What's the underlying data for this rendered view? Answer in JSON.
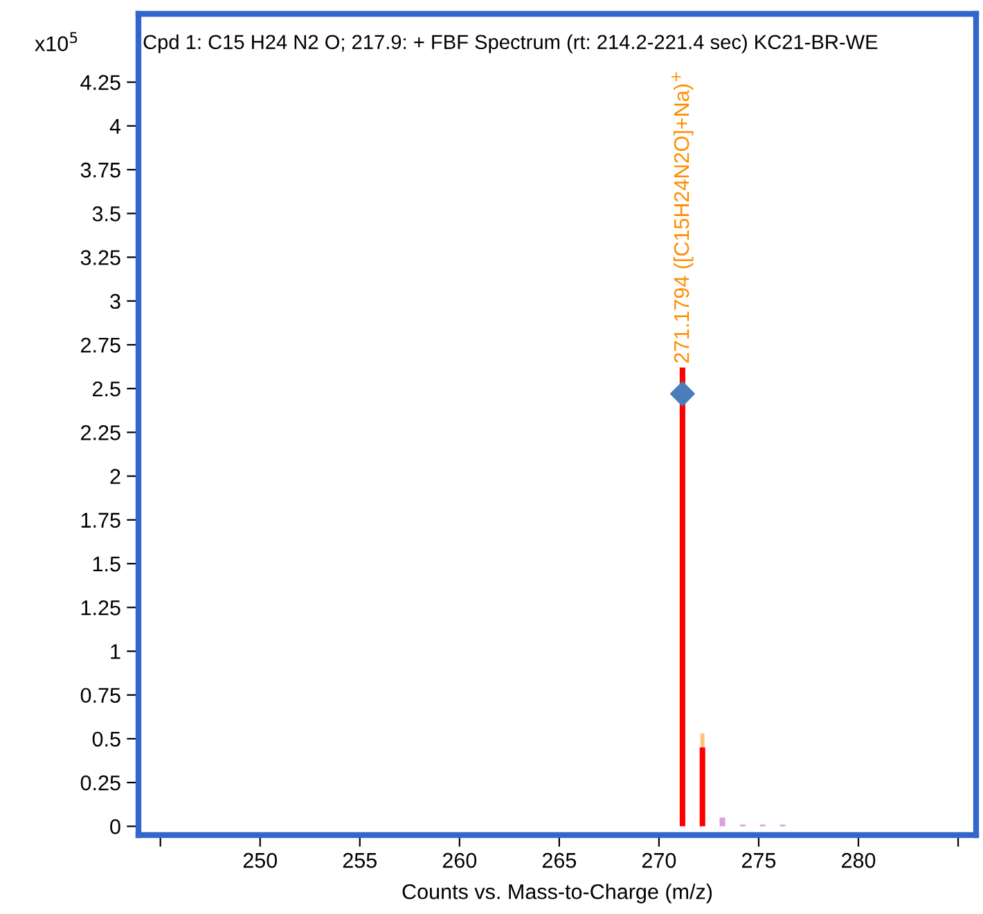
{
  "chart_data": {
    "type": "bar",
    "title": "Cpd 1: C15 H24 N2 O; 217.9: + FBF Spectrum (rt: 214.2-221.4 sec) KC21-BR-WE",
    "xlabel": "Counts vs. Mass-to-Charge (m/z)",
    "ylabel": "x10$^{5}$",
    "series": [
      {
        "color": "#ffc080",
        "x": [
          272.18
        ],
        "values": [
          0.53
        ]
      },
      {
        "color": "#ff0000",
        "x": [
          271.1794,
          272.18
        ],
        "values": [
          2.62,
          0.45
        ]
      },
      {
        "color": "#dda0dd",
        "x": [
          273.18,
          274.2,
          275.2,
          276.2
        ],
        "values": [
          0.05,
          0.01,
          0.01,
          0.01
        ]
      },
      {
        "type": "scatter",
        "color": "#4a7ebb",
        "marker": "diamond",
        "x": [
          271.1794
        ],
        "values": [
          2.47
        ]
      }
    ],
    "annotations": [
      {
        "text": "271.1794 ([C15H24N2O]+Na)$^{+}$",
        "x": 271.1794,
        "y": 2.62
      }
    ],
    "xlim": [
      243.9,
      285.9
    ],
    "xticks": [
      {
        "value": 245,
        "label": null
      },
      250,
      255,
      260,
      265,
      270,
      275,
      280,
      {
        "value": 285,
        "label": null
      }
    ],
    "ylim": [
      -0.05,
      4.64
    ],
    "yticks": [
      0,
      0.25,
      0.5,
      0.75,
      1,
      1.25,
      1.5,
      1.75,
      2,
      2.25,
      2.5,
      2.75,
      3,
      3.25,
      3.5,
      3.75,
      4,
      4.25
    ],
    "grid": false,
    "legend": false
  }
}
